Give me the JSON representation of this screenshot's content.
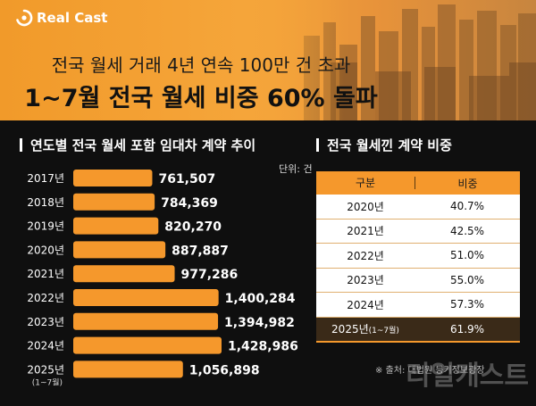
{
  "header": {
    "logo": "Real Cast",
    "headline_line1": "전국 월세 거래 4년 연속 100만 건 초과",
    "headline_line2": "1~7월 전국 월세 비중 60% 돌파"
  },
  "left_section": {
    "title": "연도별 전국 월세 포함 임대차 계약 추이",
    "unit": "단위: 건"
  },
  "right_section": {
    "title": "전국 월세낀 계약 비중",
    "columns": [
      "구분",
      "비중"
    ],
    "rows": [
      {
        "year": "2020년",
        "sub": "",
        "share": "40.7%"
      },
      {
        "year": "2021년",
        "sub": "",
        "share": "42.5%"
      },
      {
        "year": "2022년",
        "sub": "",
        "share": "51.0%"
      },
      {
        "year": "2023년",
        "sub": "",
        "share": "55.0%"
      },
      {
        "year": "2024년",
        "sub": "",
        "share": "57.3%"
      },
      {
        "year": "2025년",
        "sub": "(1~7월)",
        "share": "61.9%"
      }
    ]
  },
  "source": "※ 출처: 대법원 등기정보광장",
  "watermark": "리얼캐스트",
  "colors": {
    "accent": "#f5982c",
    "background": "#0f0f0f"
  },
  "chart_data": {
    "type": "bar",
    "orientation": "horizontal",
    "categories": [
      "2017년",
      "2018년",
      "2019년",
      "2020년",
      "2021년",
      "2022년",
      "2023년",
      "2024년",
      "2025년"
    ],
    "category_sublabels": [
      "",
      "",
      "",
      "",
      "",
      "",
      "",
      "",
      "(1~7월)"
    ],
    "values": [
      761507,
      784369,
      820270,
      887887,
      977286,
      1400284,
      1394982,
      1428986,
      1056898
    ],
    "value_labels": [
      "761,507",
      "784,369",
      "820,270",
      "887,887",
      "977,286",
      "1,400,284",
      "1,394,982",
      "1,428,986",
      "1,056,898"
    ],
    "title": "연도별 전국 월세 포함 임대차 계약 추이",
    "unit": "단위: 건",
    "grid": false,
    "legend": "none"
  }
}
